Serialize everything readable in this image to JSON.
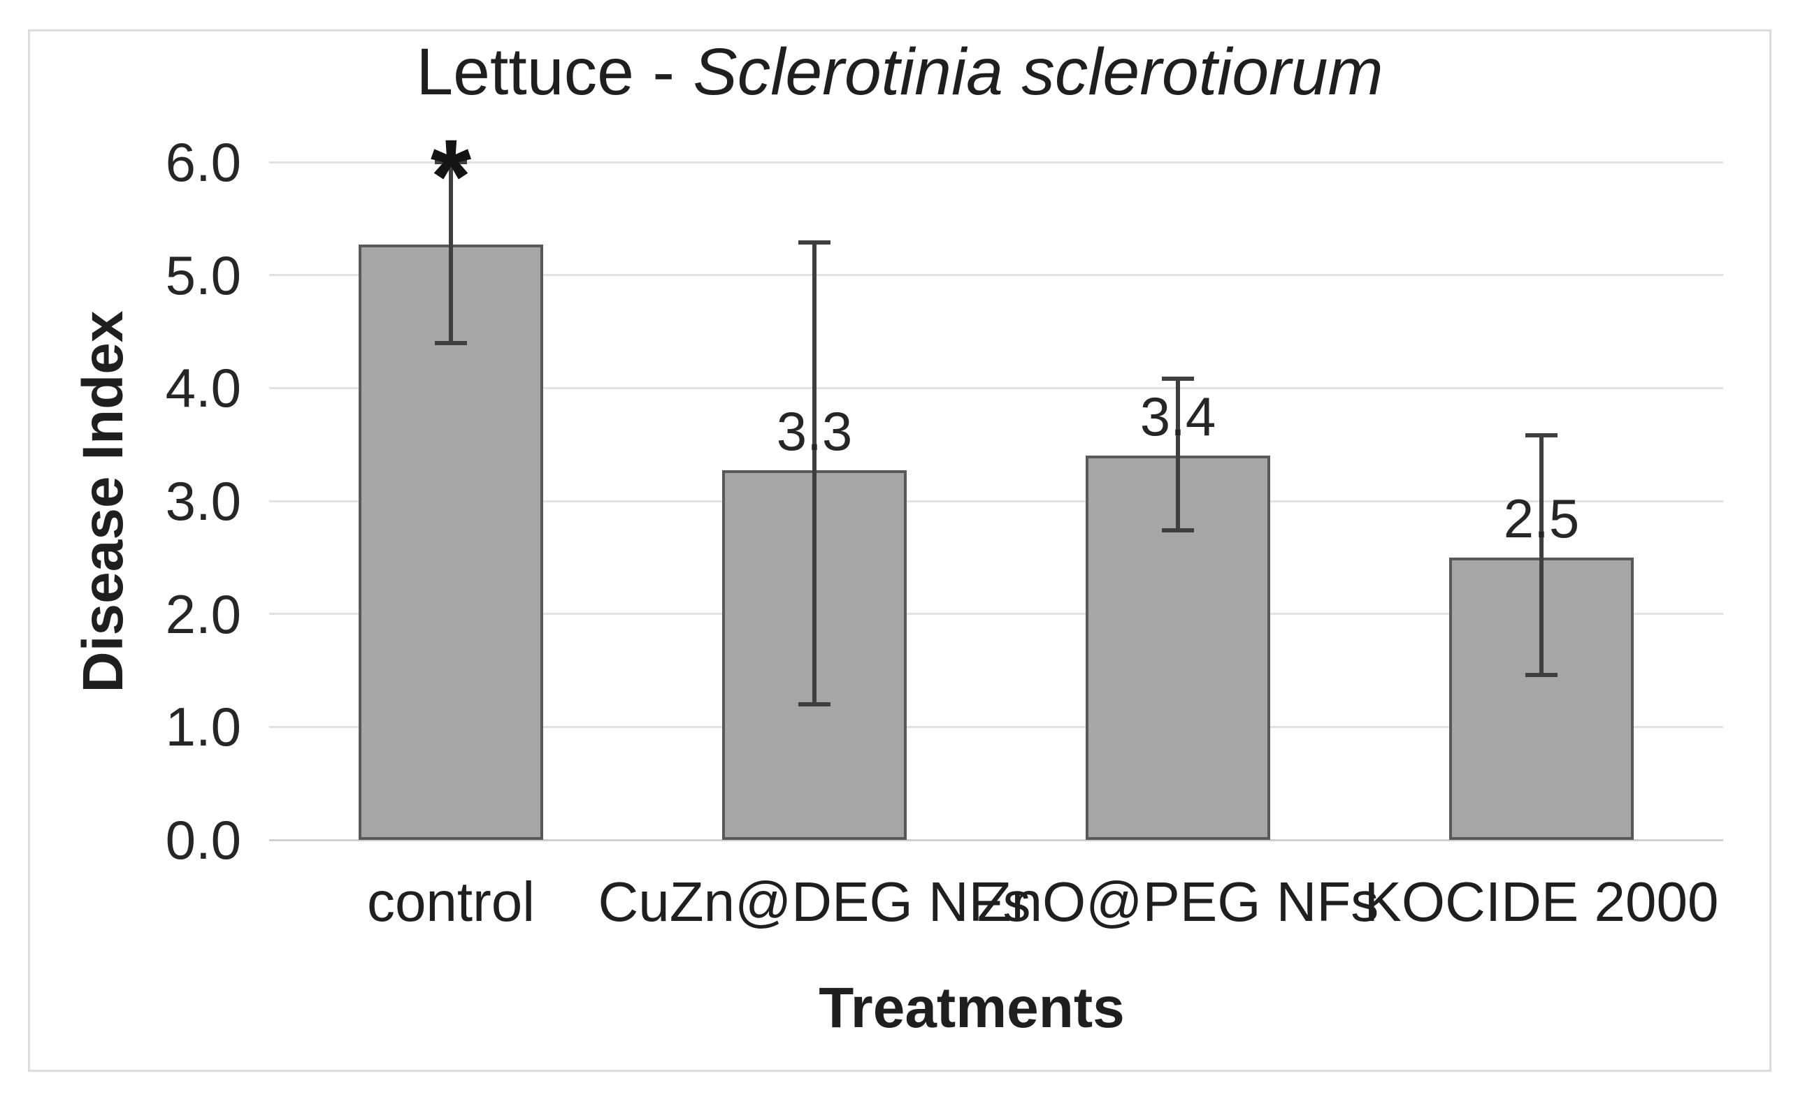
{
  "figure": {
    "title_prefix": "Lettuce - ",
    "title_species": "Sclerotinia sclerotiorum"
  },
  "chart_data": {
    "type": "bar",
    "title": "Lettuce - Sclerotinia sclerotiorum",
    "title_italic_part": "Sclerotinia sclerotiorum",
    "xlabel": "Treatments",
    "ylabel": "Disease Index",
    "ylim": [
      0,
      6
    ],
    "yticks": [
      0,
      1,
      2,
      3,
      4,
      5,
      6
    ],
    "ytick_labels": [
      "0.0",
      "1.0",
      "2.0",
      "3.0",
      "4.0",
      "5.0",
      "6.0"
    ],
    "grid": true,
    "legend": false,
    "categories": [
      "control",
      "CuZn@DEG NFs",
      "ZnO@PEG NFs",
      "KOCIDE 2000"
    ],
    "values": [
      5.27,
      3.27,
      3.4,
      2.5
    ],
    "data_labels": [
      "",
      "3.3",
      "3.4",
      "2.5"
    ],
    "error_high": [
      6.0,
      5.29,
      4.08,
      3.58
    ],
    "error_low": [
      4.4,
      1.2,
      2.74,
      1.46
    ],
    "significance_markers": [
      "*",
      "",
      "",
      ""
    ]
  },
  "style": {
    "bar_fill": "#a6a6a6",
    "bar_border": "#595959",
    "error_bar_color": "#3f3f3f",
    "gridline_color": "#e2e2e2",
    "axis_line_color": "#cfcfcf",
    "text_color": "#262626",
    "frame_border_color": "#dcdcdc",
    "background": "#ffffff"
  }
}
